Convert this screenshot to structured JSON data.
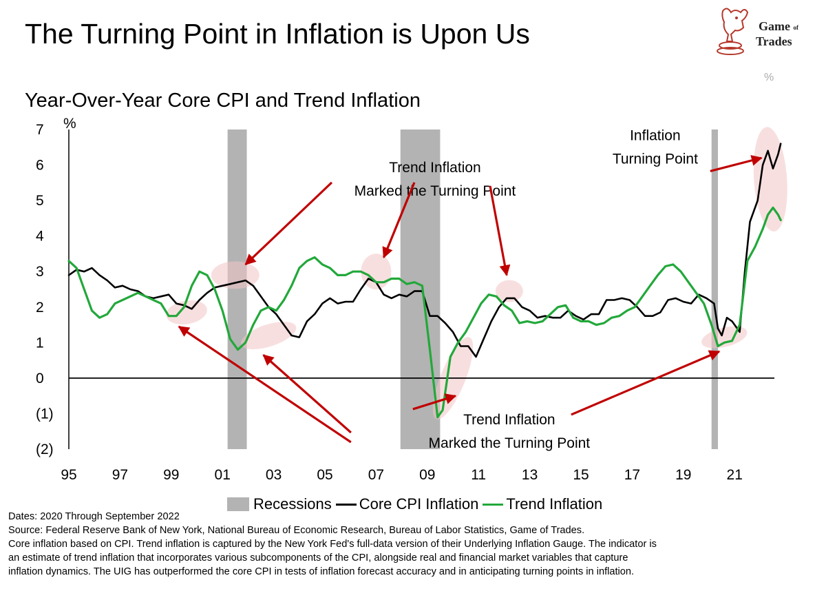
{
  "header": {
    "title": "The Turning Point in Inflation is Upon Us",
    "subtitle": "Year-Over-Year Core CPI and Trend Inflation"
  },
  "logo": {
    "line1": "Game",
    "of": "of",
    "line2": "Trades",
    "icon": "bull-knight-chess-icon",
    "color": "#b5372a"
  },
  "corner_label": "%",
  "chart_data": {
    "type": "line",
    "title": "Year-Over-Year Core CPI and Trend Inflation",
    "ylabel": "%",
    "ylim": [
      -2,
      7
    ],
    "xlim": [
      1995,
      2023
    ],
    "y_ticks": [
      {
        "value": 7,
        "label": "7"
      },
      {
        "value": 6,
        "label": "6"
      },
      {
        "value": 5,
        "label": "5"
      },
      {
        "value": 4,
        "label": "4"
      },
      {
        "value": 3,
        "label": "3"
      },
      {
        "value": 2,
        "label": "2"
      },
      {
        "value": 1,
        "label": "1"
      },
      {
        "value": 0,
        "label": "0"
      },
      {
        "value": -1,
        "label": "(1)"
      },
      {
        "value": -2,
        "label": "(2)"
      }
    ],
    "x_ticks": [
      {
        "value": 1995,
        "label": "95"
      },
      {
        "value": 1997,
        "label": "97"
      },
      {
        "value": 1999,
        "label": "99"
      },
      {
        "value": 2001,
        "label": "01"
      },
      {
        "value": 2003,
        "label": "03"
      },
      {
        "value": 2005,
        "label": "05"
      },
      {
        "value": 2007,
        "label": "07"
      },
      {
        "value": 2009,
        "label": "09"
      },
      {
        "value": 2011,
        "label": "11"
      },
      {
        "value": 2013,
        "label": "13"
      },
      {
        "value": 2015,
        "label": "15"
      },
      {
        "value": 2017,
        "label": "17"
      },
      {
        "value": 2019,
        "label": "19"
      },
      {
        "value": 2021,
        "label": "21"
      }
    ],
    "recessions": [
      [
        2001.2,
        2001.95
      ],
      [
        2007.95,
        2009.5
      ],
      [
        2020.1,
        2020.35
      ]
    ],
    "series": [
      {
        "name": "Core CPI Inflation",
        "color": "#000000",
        "points": [
          [
            1995.0,
            2.9
          ],
          [
            1995.3,
            3.05
          ],
          [
            1995.6,
            3.0
          ],
          [
            1995.9,
            3.1
          ],
          [
            1996.2,
            2.9
          ],
          [
            1996.5,
            2.75
          ],
          [
            1996.8,
            2.55
          ],
          [
            1997.1,
            2.6
          ],
          [
            1997.4,
            2.5
          ],
          [
            1997.7,
            2.45
          ],
          [
            1998.0,
            2.3
          ],
          [
            1998.3,
            2.25
          ],
          [
            1998.6,
            2.3
          ],
          [
            1998.9,
            2.35
          ],
          [
            1999.2,
            2.1
          ],
          [
            1999.5,
            2.05
          ],
          [
            1999.8,
            1.95
          ],
          [
            2000.1,
            2.2
          ],
          [
            2000.4,
            2.4
          ],
          [
            2000.7,
            2.55
          ],
          [
            2001.0,
            2.6
          ],
          [
            2001.3,
            2.65
          ],
          [
            2001.6,
            2.7
          ],
          [
            2001.9,
            2.75
          ],
          [
            2002.2,
            2.6
          ],
          [
            2002.5,
            2.3
          ],
          [
            2002.8,
            2.0
          ],
          [
            2003.1,
            1.8
          ],
          [
            2003.4,
            1.5
          ],
          [
            2003.7,
            1.2
          ],
          [
            2004.0,
            1.15
          ],
          [
            2004.3,
            1.6
          ],
          [
            2004.6,
            1.8
          ],
          [
            2004.9,
            2.1
          ],
          [
            2005.2,
            2.25
          ],
          [
            2005.5,
            2.1
          ],
          [
            2005.8,
            2.15
          ],
          [
            2006.1,
            2.15
          ],
          [
            2006.4,
            2.5
          ],
          [
            2006.7,
            2.8
          ],
          [
            2007.0,
            2.7
          ],
          [
            2007.3,
            2.35
          ],
          [
            2007.6,
            2.25
          ],
          [
            2007.9,
            2.35
          ],
          [
            2008.2,
            2.3
          ],
          [
            2008.5,
            2.45
          ],
          [
            2008.8,
            2.45
          ],
          [
            2009.1,
            1.75
          ],
          [
            2009.4,
            1.75
          ],
          [
            2009.7,
            1.55
          ],
          [
            2010.0,
            1.3
          ],
          [
            2010.3,
            0.9
          ],
          [
            2010.6,
            0.9
          ],
          [
            2010.9,
            0.6
          ],
          [
            2011.2,
            1.1
          ],
          [
            2011.5,
            1.6
          ],
          [
            2011.8,
            2.0
          ],
          [
            2012.1,
            2.25
          ],
          [
            2012.4,
            2.25
          ],
          [
            2012.7,
            2.0
          ],
          [
            2013.0,
            1.9
          ],
          [
            2013.3,
            1.7
          ],
          [
            2013.6,
            1.75
          ],
          [
            2013.9,
            1.7
          ],
          [
            2014.2,
            1.7
          ],
          [
            2014.5,
            1.9
          ],
          [
            2014.8,
            1.75
          ],
          [
            2015.1,
            1.65
          ],
          [
            2015.4,
            1.8
          ],
          [
            2015.7,
            1.8
          ],
          [
            2016.0,
            2.2
          ],
          [
            2016.3,
            2.2
          ],
          [
            2016.6,
            2.25
          ],
          [
            2016.9,
            2.2
          ],
          [
            2017.2,
            2.0
          ],
          [
            2017.5,
            1.75
          ],
          [
            2017.8,
            1.75
          ],
          [
            2018.1,
            1.85
          ],
          [
            2018.4,
            2.2
          ],
          [
            2018.7,
            2.25
          ],
          [
            2019.0,
            2.15
          ],
          [
            2019.3,
            2.1
          ],
          [
            2019.6,
            2.35
          ],
          [
            2019.9,
            2.25
          ],
          [
            2020.2,
            2.1
          ],
          [
            2020.35,
            1.4
          ],
          [
            2020.5,
            1.2
          ],
          [
            2020.7,
            1.7
          ],
          [
            2020.9,
            1.6
          ],
          [
            2021.2,
            1.3
          ],
          [
            2021.4,
            3.0
          ],
          [
            2021.6,
            4.4
          ],
          [
            2021.9,
            5.0
          ],
          [
            2022.1,
            6.0
          ],
          [
            2022.3,
            6.4
          ],
          [
            2022.5,
            5.9
          ],
          [
            2022.7,
            6.3
          ],
          [
            2022.8,
            6.6
          ]
        ]
      },
      {
        "name": "Trend Inflation",
        "color": "#22a83a",
        "points": [
          [
            1995.0,
            3.3
          ],
          [
            1995.3,
            3.1
          ],
          [
            1995.6,
            2.5
          ],
          [
            1995.9,
            1.9
          ],
          [
            1996.2,
            1.7
          ],
          [
            1996.5,
            1.8
          ],
          [
            1996.8,
            2.1
          ],
          [
            1997.1,
            2.2
          ],
          [
            1997.4,
            2.3
          ],
          [
            1997.7,
            2.4
          ],
          [
            1998.0,
            2.3
          ],
          [
            1998.3,
            2.2
          ],
          [
            1998.6,
            2.1
          ],
          [
            1998.9,
            1.75
          ],
          [
            1999.2,
            1.75
          ],
          [
            1999.5,
            2.0
          ],
          [
            1999.8,
            2.6
          ],
          [
            2000.1,
            3.0
          ],
          [
            2000.4,
            2.9
          ],
          [
            2000.7,
            2.5
          ],
          [
            2001.0,
            1.9
          ],
          [
            2001.3,
            1.1
          ],
          [
            2001.6,
            0.8
          ],
          [
            2001.9,
            1.0
          ],
          [
            2002.2,
            1.5
          ],
          [
            2002.5,
            1.9
          ],
          [
            2002.8,
            2.0
          ],
          [
            2003.1,
            1.9
          ],
          [
            2003.4,
            2.2
          ],
          [
            2003.7,
            2.6
          ],
          [
            2004.0,
            3.1
          ],
          [
            2004.3,
            3.3
          ],
          [
            2004.6,
            3.4
          ],
          [
            2004.9,
            3.2
          ],
          [
            2005.2,
            3.1
          ],
          [
            2005.5,
            2.9
          ],
          [
            2005.8,
            2.9
          ],
          [
            2006.1,
            3.0
          ],
          [
            2006.4,
            3.0
          ],
          [
            2006.7,
            2.9
          ],
          [
            2007.0,
            2.7
          ],
          [
            2007.3,
            2.7
          ],
          [
            2007.6,
            2.8
          ],
          [
            2007.9,
            2.8
          ],
          [
            2008.2,
            2.65
          ],
          [
            2008.5,
            2.7
          ],
          [
            2008.8,
            2.6
          ],
          [
            2009.1,
            0.8
          ],
          [
            2009.4,
            -1.1
          ],
          [
            2009.6,
            -0.9
          ],
          [
            2009.9,
            0.6
          ],
          [
            2010.2,
            1.0
          ],
          [
            2010.5,
            1.3
          ],
          [
            2010.8,
            1.7
          ],
          [
            2011.1,
            2.1
          ],
          [
            2011.4,
            2.35
          ],
          [
            2011.7,
            2.3
          ],
          [
            2012.0,
            2.05
          ],
          [
            2012.3,
            1.9
          ],
          [
            2012.6,
            1.55
          ],
          [
            2012.9,
            1.6
          ],
          [
            2013.2,
            1.55
          ],
          [
            2013.5,
            1.6
          ],
          [
            2013.8,
            1.8
          ],
          [
            2014.1,
            2.0
          ],
          [
            2014.4,
            2.05
          ],
          [
            2014.7,
            1.7
          ],
          [
            2015.0,
            1.6
          ],
          [
            2015.3,
            1.6
          ],
          [
            2015.6,
            1.5
          ],
          [
            2015.9,
            1.55
          ],
          [
            2016.2,
            1.7
          ],
          [
            2016.5,
            1.75
          ],
          [
            2016.8,
            1.9
          ],
          [
            2017.1,
            2.0
          ],
          [
            2017.4,
            2.3
          ],
          [
            2017.7,
            2.6
          ],
          [
            2018.0,
            2.9
          ],
          [
            2018.3,
            3.15
          ],
          [
            2018.6,
            3.2
          ],
          [
            2018.9,
            3.0
          ],
          [
            2019.2,
            2.7
          ],
          [
            2019.5,
            2.4
          ],
          [
            2019.8,
            2.1
          ],
          [
            2020.1,
            1.5
          ],
          [
            2020.35,
            0.9
          ],
          [
            2020.6,
            1.0
          ],
          [
            2020.9,
            1.05
          ],
          [
            2021.2,
            1.5
          ],
          [
            2021.5,
            3.3
          ],
          [
            2021.8,
            3.7
          ],
          [
            2022.1,
            4.2
          ],
          [
            2022.3,
            4.6
          ],
          [
            2022.5,
            4.8
          ],
          [
            2022.7,
            4.6
          ],
          [
            2022.8,
            4.45
          ]
        ]
      }
    ],
    "highlights": [
      {
        "x": 1999.6,
        "y": 1.85,
        "rx": 30,
        "ry": 17,
        "rot": -10
      },
      {
        "x": 2001.5,
        "y": 2.9,
        "rx": 35,
        "ry": 20,
        "rot": 0
      },
      {
        "x": 2002.8,
        "y": 1.2,
        "rx": 42,
        "ry": 16,
        "rot": -18
      },
      {
        "x": 2007.0,
        "y": 3.0,
        "rx": 22,
        "ry": 26,
        "rot": 0
      },
      {
        "x": 2010.0,
        "y": 0.0,
        "rx": 18,
        "ry": 64,
        "rot": 22
      },
      {
        "x": 2012.2,
        "y": 2.45,
        "rx": 20,
        "ry": 16,
        "rot": 0
      },
      {
        "x": 2020.6,
        "y": 1.15,
        "rx": 34,
        "ry": 14,
        "rot": -14
      },
      {
        "x": 2022.4,
        "y": 5.6,
        "rx": 24,
        "ry": 76,
        "rot": -4
      }
    ],
    "annotations": [
      {
        "lines": [
          "Inflation",
          "Turning Point"
        ],
        "x": 2017.9,
        "y": 6.7,
        "arrows": [
          [
            2022.05,
            6.2
          ]
        ]
      },
      {
        "lines": [
          "Trend Inflation",
          "Marked the Turning Point"
        ],
        "x": 2009.3,
        "y": 5.8,
        "arrows": [
          [
            2001.9,
            3.2
          ],
          [
            2007.3,
            3.4
          ],
          [
            2012.1,
            2.9
          ]
        ]
      },
      {
        "lines": [
          "Trend Inflation",
          "Marked the Turning Point"
        ],
        "x": 2012.2,
        "y": -1.3,
        "arrows": [
          [
            1999.3,
            1.45
          ],
          [
            2002.6,
            0.65
          ],
          [
            2010.1,
            -0.5
          ],
          [
            2020.4,
            0.75
          ]
        ]
      }
    ]
  },
  "legend": {
    "recessions": "Recessions",
    "core": "Core CPI Inflation",
    "trend": "Trend Inflation"
  },
  "footnotes": {
    "dates": "Dates: 2020 Through September 2022",
    "source": "Source: Federal Reserve Bank of New York, National Bureau of Economic Research, Bureau of Labor Statistics, Game of Trades.",
    "note1": "Core inflation based on CPI. Trend inflation is captured by the New York Fed's full-data version of their Underlying Inflation Gauge. The indicator is",
    "note2": "an estimate of trend inflation that incorporates various subcomponents of the CPI, alongside real and financial market variables that capture",
    "note3": "inflation dynamics. The UIG has outperformed the core CPI in tests of inflation forecast accuracy and in anticipating turning points in inflation."
  }
}
